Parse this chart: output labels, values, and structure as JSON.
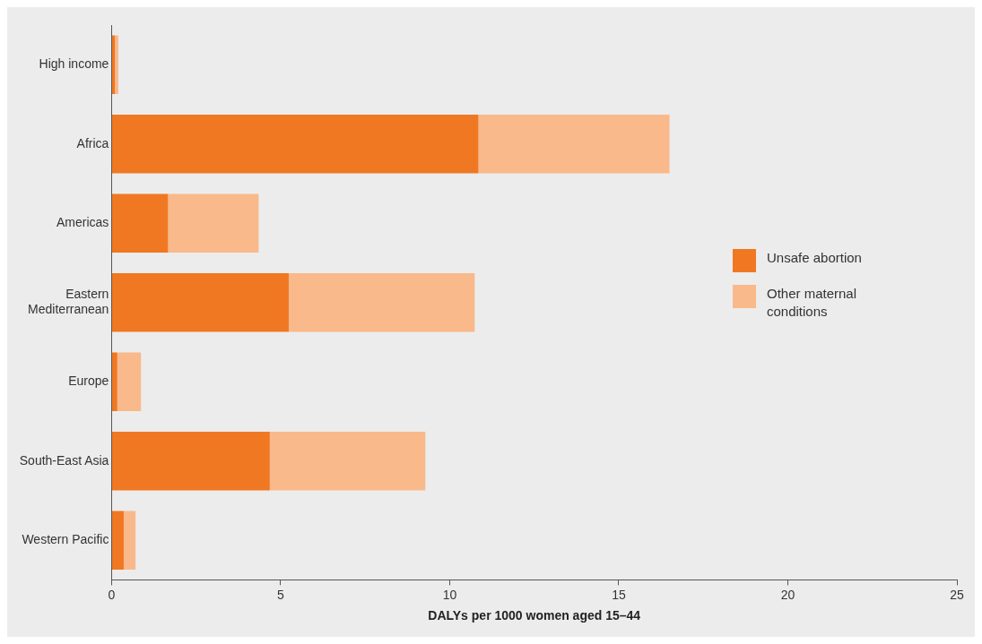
{
  "chart_data": {
    "type": "bar",
    "orientation": "horizontal",
    "stacked": true,
    "categories": [
      "High income",
      "Africa",
      "Americas",
      "Eastern Mediterranean",
      "Europe",
      "South-East Asia",
      "Western Pacific"
    ],
    "series": [
      {
        "name": "Unsafe abortion",
        "color": "#f07822",
        "values": [
          0.1,
          10.85,
          1.67,
          5.24,
          0.17,
          4.68,
          0.36
        ]
      },
      {
        "name": "Other maternal conditions",
        "color": "#f9b98a",
        "values": [
          0.1,
          5.65,
          2.68,
          5.5,
          0.7,
          4.6,
          0.35
        ]
      }
    ],
    "xlabel": "DALYs per 1000 women aged 15–44",
    "xlim": [
      0,
      25
    ],
    "xticks": [
      0,
      5,
      10,
      15,
      20,
      25
    ],
    "grid": false,
    "legend": "right"
  }
}
